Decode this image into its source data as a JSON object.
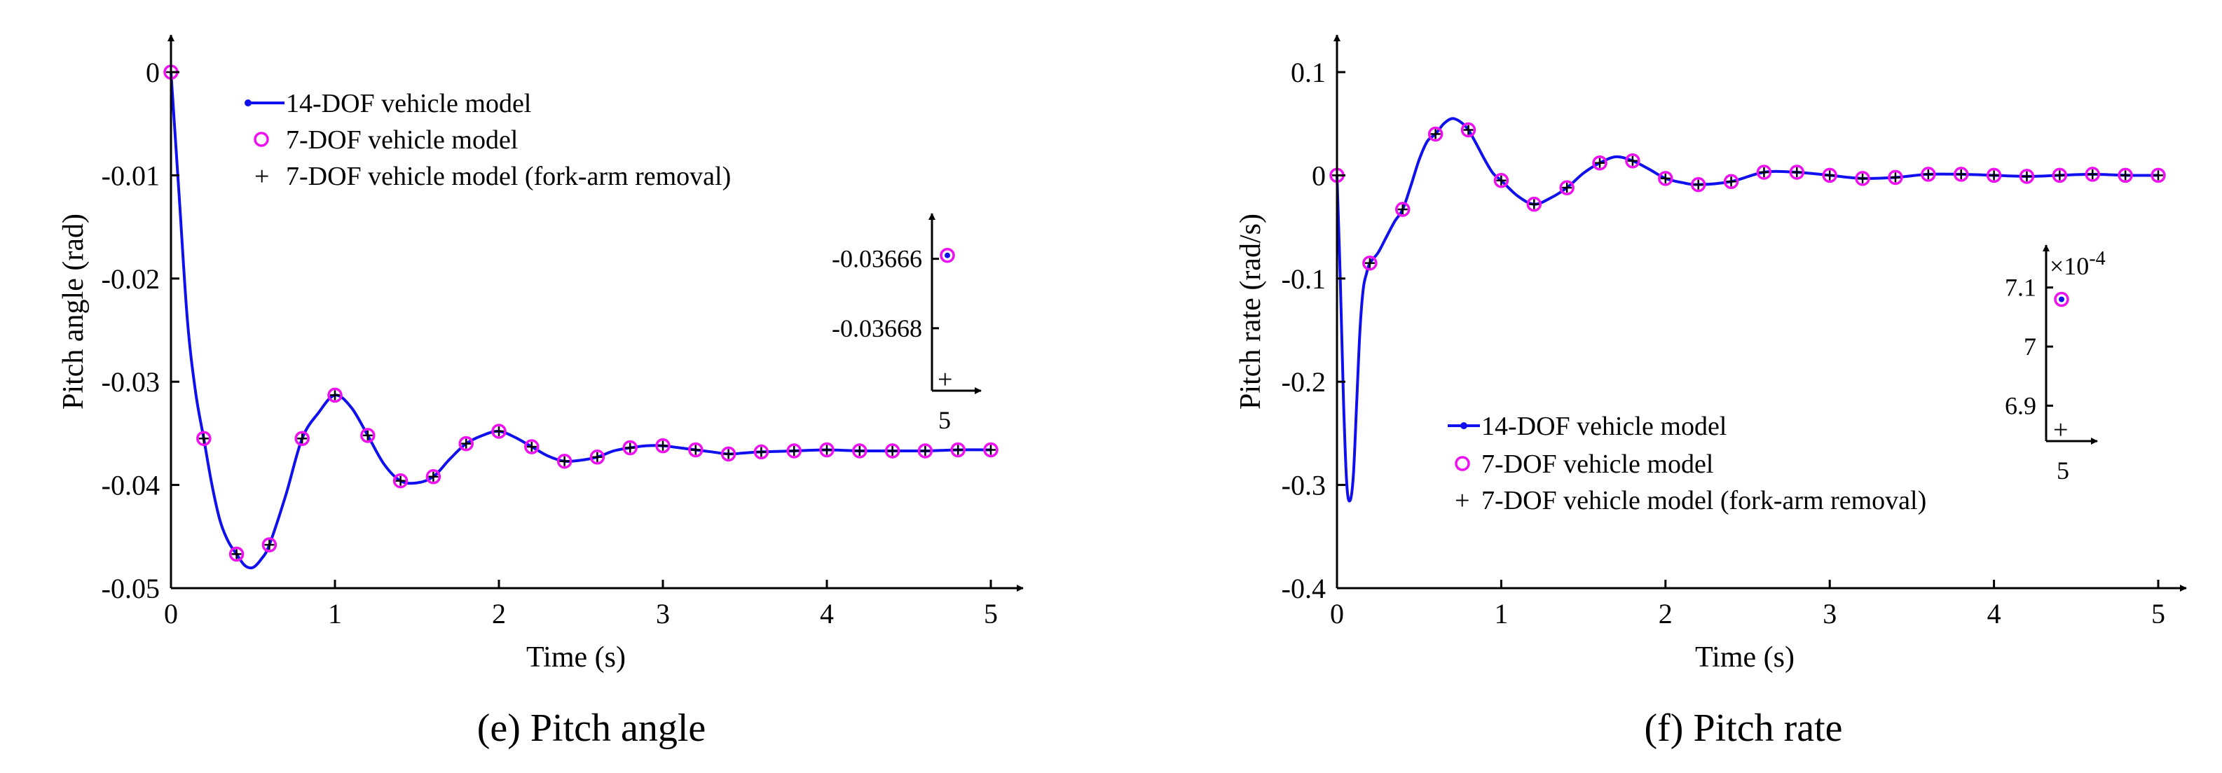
{
  "colors": {
    "model14": "#1010ee",
    "model7": "#ee10ee",
    "fork": "#000000",
    "axis": "#000000"
  },
  "legend": {
    "model14": "14-DOF vehicle model",
    "model7": "7-DOF vehicle model",
    "fork": "7-DOF vehicle model (fork-arm removal)"
  },
  "chart_data": [
    {
      "id": "e",
      "type": "line",
      "caption": "(e)  Pitch angle",
      "xlabel": "Time (s)",
      "ylabel": "Pitch angle (rad)",
      "xlim": [
        0,
        5
      ],
      "ylim": [
        -0.05,
        0
      ],
      "xticks": [
        0,
        1,
        2,
        3,
        4,
        5
      ],
      "xtick_labels": [
        "0",
        "1",
        "2",
        "3",
        "4",
        "5"
      ],
      "yticks": [
        0,
        -0.01,
        -0.02,
        -0.03,
        -0.04,
        -0.05
      ],
      "ytick_labels": [
        "0",
        "-0.01",
        "-0.02",
        "-0.03",
        "-0.04",
        "-0.05"
      ],
      "legend_position": "top-left",
      "curve": {
        "x": [
          0,
          0.05,
          0.1,
          0.15,
          0.2,
          0.25,
          0.3,
          0.35,
          0.4,
          0.45,
          0.5,
          0.55,
          0.6,
          0.7,
          0.8,
          0.9,
          1.0,
          1.1,
          1.2,
          1.3,
          1.4,
          1.5,
          1.6,
          1.7,
          1.8,
          1.9,
          2.0,
          2.1,
          2.2,
          2.3,
          2.4,
          2.5,
          2.6,
          2.7,
          2.8,
          2.9,
          3.0,
          3.1,
          3.2,
          3.3,
          3.4,
          3.5,
          3.6,
          3.8,
          4.0,
          4.2,
          4.4,
          4.6,
          4.8,
          5.0
        ],
        "y": [
          0,
          -0.012,
          -0.024,
          -0.031,
          -0.0355,
          -0.04,
          -0.0435,
          -0.0455,
          -0.0467,
          -0.0478,
          -0.048,
          -0.0472,
          -0.0458,
          -0.041,
          -0.0355,
          -0.033,
          -0.0313,
          -0.0325,
          -0.0352,
          -0.038,
          -0.0396,
          -0.0398,
          -0.0392,
          -0.0375,
          -0.036,
          -0.0352,
          -0.0348,
          -0.0354,
          -0.0363,
          -0.0372,
          -0.0377,
          -0.0376,
          -0.0373,
          -0.0367,
          -0.0364,
          -0.0362,
          -0.0362,
          -0.0364,
          -0.0366,
          -0.0368,
          -0.037,
          -0.0369,
          -0.0368,
          -0.0367,
          -0.0366,
          -0.0367,
          -0.0367,
          -0.0367,
          -0.0366,
          -0.0366
        ]
      },
      "markers": {
        "x": [
          0,
          0.2,
          0.4,
          0.6,
          0.8,
          1.0,
          1.2,
          1.4,
          1.6,
          1.8,
          2.0,
          2.2,
          2.4,
          2.6,
          2.8,
          3.0,
          3.2,
          3.4,
          3.6,
          3.8,
          4.0,
          4.2,
          4.4,
          4.6,
          4.8,
          5.0
        ],
        "y": [
          0,
          -0.0355,
          -0.0467,
          -0.0458,
          -0.0355,
          -0.0313,
          -0.0352,
          -0.0396,
          -0.0392,
          -0.036,
          -0.0348,
          -0.0363,
          -0.0377,
          -0.0373,
          -0.0364,
          -0.0362,
          -0.0366,
          -0.037,
          -0.0368,
          -0.0367,
          -0.0366,
          -0.0367,
          -0.0367,
          -0.0367,
          -0.0366,
          -0.0366
        ]
      },
      "inset": {
        "yticks": [
          -0.03666,
          -0.03668
        ],
        "ytick_labels": [
          "-0.03666",
          "-0.03668"
        ],
        "ylim": [
          -0.036698,
          -0.036652
        ],
        "xtick_label": "5",
        "point": {
          "x": 5,
          "y": -0.036659
        },
        "exponent_label": ""
      }
    },
    {
      "id": "f",
      "type": "line",
      "caption": "(f)  Pitch rate",
      "xlabel": "Time (s)",
      "ylabel": "Pitch rate (rad/s)",
      "xlim": [
        0,
        5
      ],
      "ylim": [
        -0.4,
        0.1
      ],
      "xticks": [
        0,
        1,
        2,
        3,
        4,
        5
      ],
      "xtick_labels": [
        "0",
        "1",
        "2",
        "3",
        "4",
        "5"
      ],
      "yticks": [
        0.1,
        0,
        -0.1,
        -0.2,
        -0.3,
        -0.4
      ],
      "ytick_labels": [
        "0.1",
        "0",
        "-0.1",
        "-0.2",
        "-0.3",
        "-0.4"
      ],
      "legend_position": "bottom-center",
      "curve": {
        "x": [
          0,
          0.02,
          0.04,
          0.06,
          0.08,
          0.1,
          0.12,
          0.14,
          0.16,
          0.18,
          0.2,
          0.25,
          0.3,
          0.35,
          0.4,
          0.45,
          0.5,
          0.55,
          0.6,
          0.65,
          0.7,
          0.75,
          0.8,
          0.85,
          0.9,
          0.95,
          1.0,
          1.1,
          1.2,
          1.3,
          1.4,
          1.5,
          1.6,
          1.7,
          1.8,
          1.9,
          2.0,
          2.1,
          2.2,
          2.4,
          2.6,
          2.8,
          3.0,
          3.2,
          3.4,
          3.6,
          3.8,
          4.0,
          4.2,
          4.4,
          4.6,
          4.8,
          5.0
        ],
        "y": [
          0,
          -0.1,
          -0.22,
          -0.3,
          -0.315,
          -0.29,
          -0.22,
          -0.15,
          -0.11,
          -0.095,
          -0.085,
          -0.075,
          -0.06,
          -0.045,
          -0.033,
          -0.01,
          0.015,
          0.033,
          0.04,
          0.05,
          0.055,
          0.052,
          0.044,
          0.03,
          0.015,
          0.002,
          -0.005,
          -0.02,
          -0.028,
          -0.022,
          -0.012,
          0.002,
          0.012,
          0.018,
          0.014,
          0.006,
          -0.003,
          -0.007,
          -0.009,
          -0.006,
          0.003,
          0.003,
          0.0,
          -0.003,
          -0.002,
          0.001,
          0.001,
          0.0,
          -0.001,
          0.0,
          0.001,
          0.0,
          0.0
        ]
      },
      "markers": {
        "x": [
          0,
          0.2,
          0.4,
          0.6,
          0.8,
          1.0,
          1.2,
          1.4,
          1.6,
          1.8,
          2.0,
          2.2,
          2.4,
          2.6,
          2.8,
          3.0,
          3.2,
          3.4,
          3.6,
          3.8,
          4.0,
          4.2,
          4.4,
          4.6,
          4.8,
          5.0
        ],
        "y": [
          0,
          -0.085,
          -0.033,
          0.04,
          0.044,
          -0.005,
          -0.028,
          -0.012,
          0.012,
          0.014,
          -0.003,
          -0.009,
          -0.006,
          0.003,
          0.003,
          0.0,
          -0.003,
          -0.002,
          0.001,
          0.001,
          0.0,
          -0.001,
          0.0,
          0.001,
          0.0,
          0.0
        ]
      },
      "inset": {
        "yticks": [
          7.1,
          7.0,
          6.9
        ],
        "ytick_labels": [
          "7.1",
          "7",
          "6.9"
        ],
        "ylim": [
          6.84,
          7.16
        ],
        "xtick_label": "5",
        "point": {
          "x": 5,
          "y": 7.08
        },
        "exponent_label": "×10",
        "exponent_power": "-4"
      }
    }
  ]
}
